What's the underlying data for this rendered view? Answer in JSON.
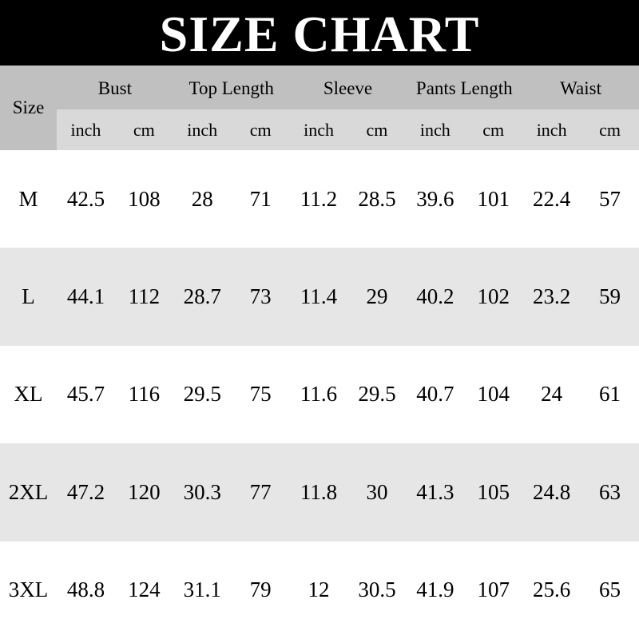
{
  "title": "SIZE CHART",
  "header": {
    "size_label": "Size",
    "groups": [
      "Bust",
      "Top Length",
      "Sleeve",
      "Pants Length",
      "Waist"
    ],
    "units": [
      "inch",
      "cm",
      "inch",
      "cm",
      "inch",
      "cm",
      "inch",
      "cm",
      "inch",
      "cm"
    ]
  },
  "rows": [
    {
      "size": "M",
      "values": [
        "42.5",
        "108",
        "28",
        "71",
        "11.2",
        "28.5",
        "39.6",
        "101",
        "22.4",
        "57"
      ]
    },
    {
      "size": "L",
      "values": [
        "44.1",
        "112",
        "28.7",
        "73",
        "11.4",
        "29",
        "40.2",
        "102",
        "23.2",
        "59"
      ]
    },
    {
      "size": "XL",
      "values": [
        "45.7",
        "116",
        "29.5",
        "75",
        "11.6",
        "29.5",
        "40.7",
        "104",
        "24",
        "61"
      ]
    },
    {
      "size": "2XL",
      "values": [
        "47.2",
        "120",
        "30.3",
        "77",
        "11.8",
        "30",
        "41.3",
        "105",
        "24.8",
        "63"
      ]
    },
    {
      "size": "3XL",
      "values": [
        "48.8",
        "124",
        "31.1",
        "79",
        "12",
        "30.5",
        "41.9",
        "107",
        "25.6",
        "65"
      ]
    }
  ],
  "colors": {
    "title_bg": "#000000",
    "header_bg": "#c0c0c0",
    "units_bg": "#d9d9d9",
    "alt_row_bg": "#e6e6e6"
  }
}
